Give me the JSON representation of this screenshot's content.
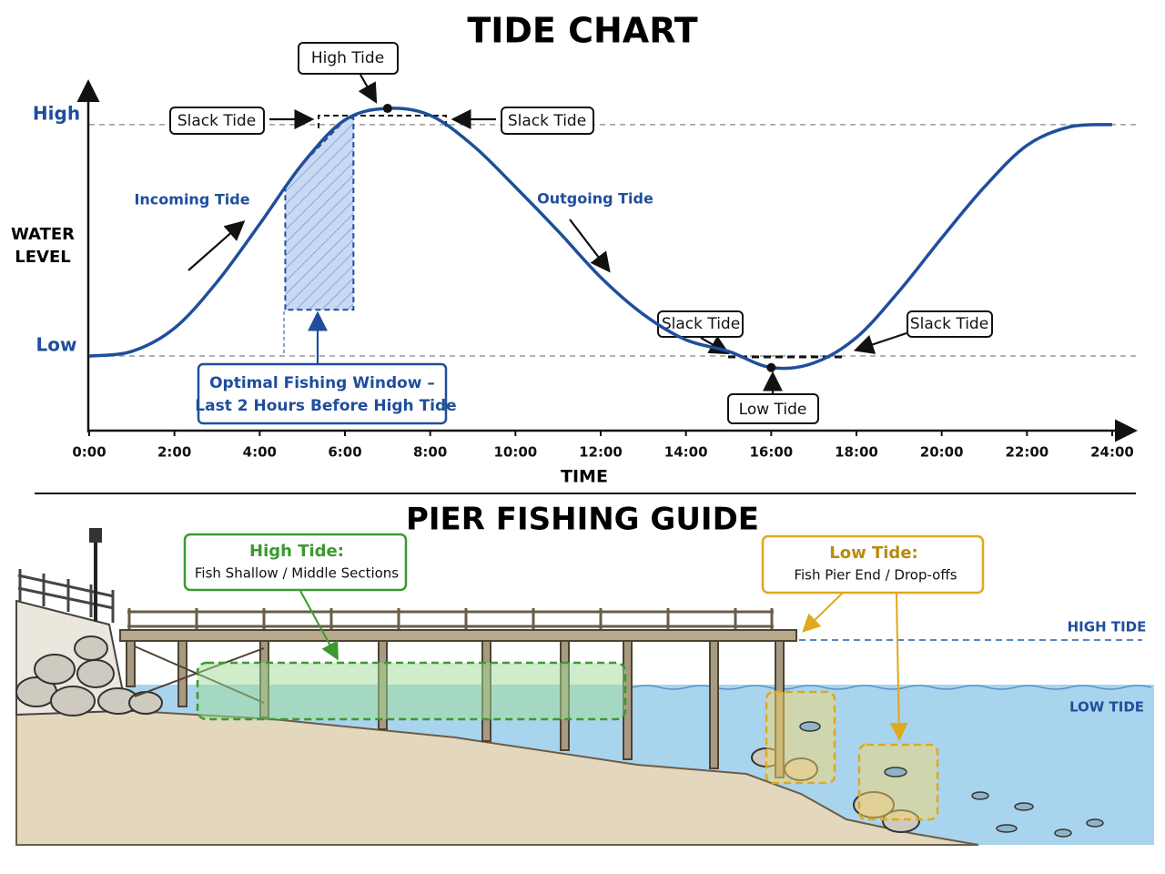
{
  "chart_data": {
    "type": "line",
    "title": "TIDE CHART",
    "x_label": "TIME",
    "y_label": [
      "WATER",
      "LEVEL"
    ],
    "x": [
      0,
      1,
      2,
      3,
      4,
      5,
      6,
      7,
      8,
      9,
      10,
      11,
      12,
      13,
      14,
      15,
      16,
      17,
      18,
      19,
      20,
      21,
      22,
      23,
      24
    ],
    "series": [
      {
        "color": "#1f4e9c",
        "values": [
          0,
          0.02,
          0.12,
          0.32,
          0.57,
          0.83,
          1.02,
          1.07,
          1.04,
          0.91,
          0.73,
          0.54,
          0.34,
          0.18,
          0.07,
          0.02,
          -0.05,
          -0.03,
          0.08,
          0.28,
          0.51,
          0.73,
          0.91,
          0.99,
          1.0
        ]
      }
    ],
    "xlim": [
      0,
      24
    ],
    "xticks": [
      {
        "value": 0,
        "label": "0:00"
      },
      {
        "value": 2,
        "label": "2:00"
      },
      {
        "value": 4,
        "label": "4:00"
      },
      {
        "value": 6,
        "label": "6:00"
      },
      {
        "value": 8,
        "label": "8:00"
      },
      {
        "value": 10,
        "label": "10:00"
      },
      {
        "value": 12,
        "label": "12:00"
      },
      {
        "value": 14,
        "label": "14:00"
      },
      {
        "value": 16,
        "label": "16:00"
      },
      {
        "value": 18,
        "label": "18:00"
      },
      {
        "value": 20,
        "label": "20:00"
      },
      {
        "value": 22,
        "label": "22:00"
      },
      {
        "value": 24,
        "label": "24:00"
      }
    ],
    "ylim": [
      -0.35,
      1.2
    ],
    "yticks": [
      {
        "value": 0,
        "label": "Low"
      },
      {
        "value": 1,
        "label": "High"
      }
    ],
    "grid": true,
    "window": {
      "x": [
        4.6,
        6.2
      ],
      "floor": 0.2,
      "label": [
        "Optimal Fishing Window –",
        "Last 2 Hours Before High Tide"
      ]
    },
    "annotations": [
      "High Tide",
      "Slack Tide",
      "Slack Tide",
      "Incoming Tide",
      "Outgoing Tide",
      "Slack Tide",
      "Slack Tide",
      "Low Tide"
    ]
  },
  "guide": {
    "title": "PIER FISHING GUIDE",
    "high_tide": {
      "heading": "High Tide:",
      "text": "Fish Shallow / Middle Sections"
    },
    "low_tide": {
      "heading": "Low Tide:",
      "text": "Fish Pier End / Drop-offs"
    },
    "levels": [
      "HIGH TIDE",
      "LOW TIDE"
    ]
  }
}
